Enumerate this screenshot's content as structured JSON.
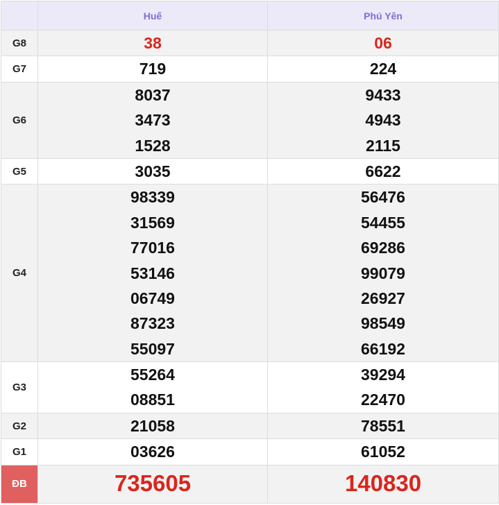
{
  "header": {
    "provinces": [
      "Huế",
      "Phú Yên"
    ]
  },
  "colors": {
    "header_text": "#7b6fd6",
    "highlight": "#d9261c",
    "special_label_bg": "#e06060"
  },
  "rows": [
    {
      "label": "G8",
      "huế": [
        "38"
      ],
      "phu_yen": [
        "06"
      ]
    },
    {
      "label": "G7",
      "huế": [
        "719"
      ],
      "phu_yen": [
        "224"
      ]
    },
    {
      "label": "G6",
      "huế": [
        "8037",
        "3473",
        "1528"
      ],
      "phu_yen": [
        "9433",
        "4943",
        "2115"
      ]
    },
    {
      "label": "G5",
      "huế": [
        "3035"
      ],
      "phu_yen": [
        "6622"
      ]
    },
    {
      "label": "G4",
      "huế": [
        "98339",
        "31569",
        "77016",
        "53146",
        "06749",
        "87323",
        "55097"
      ],
      "phu_yen": [
        "56476",
        "54455",
        "69286",
        "99079",
        "26927",
        "98549",
        "66192"
      ]
    },
    {
      "label": "G3",
      "huế": [
        "55264",
        "08851"
      ],
      "phu_yen": [
        "39294",
        "22470"
      ]
    },
    {
      "label": "G2",
      "huế": [
        "21058"
      ],
      "phu_yen": [
        "78551"
      ]
    },
    {
      "label": "G1",
      "huế": [
        "03626"
      ],
      "phu_yen": [
        "61052"
      ]
    },
    {
      "label": "ĐB",
      "huế": [
        "735605"
      ],
      "phu_yen": [
        "140830"
      ]
    }
  ]
}
